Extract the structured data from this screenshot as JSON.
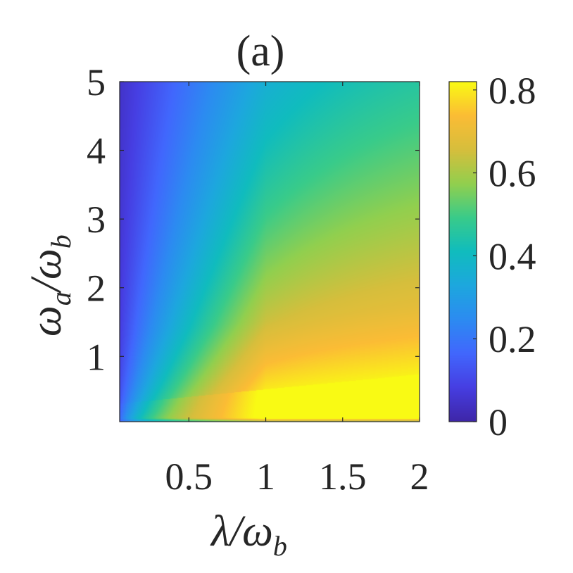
{
  "chart_data": {
    "type": "heatmap",
    "title": "(a)",
    "xlabel": {
      "main": "λ/ω",
      "sub": "b"
    },
    "ylabel": {
      "main": "ω",
      "sub_a": "a",
      "slash": "/ω",
      "sub_b": "b"
    },
    "xlim": [
      0.05,
      2
    ],
    "ylim": [
      0.05,
      5
    ],
    "x_ticks": [
      0.5,
      1,
      1.5,
      2
    ],
    "x_tick_labels": [
      "0.5",
      "1",
      "1.5",
      "2"
    ],
    "y_ticks": [
      1,
      2,
      3,
      4,
      5
    ],
    "y_tick_labels": [
      "1",
      "2",
      "3",
      "4",
      "5"
    ],
    "colorbar": {
      "range": [
        0,
        0.82
      ],
      "ticks": [
        0,
        0.2,
        0.4,
        0.6,
        0.8
      ],
      "tick_labels": [
        "0",
        "0.2",
        "0.4",
        "0.6",
        "0.8"
      ],
      "colormap": "parula"
    },
    "grid": false,
    "sample_values": {
      "x": [
        0.1,
        0.5,
        1.0,
        1.5,
        2.0
      ],
      "y": [
        0.1,
        0.5,
        1.0,
        2.0,
        3.0,
        4.0,
        5.0
      ],
      "z": [
        [
          0.1,
          0.4,
          0.78,
          0.8,
          0.82
        ],
        [
          0.08,
          0.45,
          0.68,
          0.74,
          0.76
        ],
        [
          0.07,
          0.34,
          0.56,
          0.63,
          0.65
        ],
        [
          0.06,
          0.27,
          0.45,
          0.52,
          0.54
        ],
        [
          0.06,
          0.23,
          0.38,
          0.44,
          0.46
        ],
        [
          0.05,
          0.2,
          0.33,
          0.38,
          0.4
        ],
        [
          0.05,
          0.18,
          0.29,
          0.33,
          0.35
        ]
      ]
    }
  },
  "colors": {
    "text": "#262626",
    "axis": "#262626"
  }
}
